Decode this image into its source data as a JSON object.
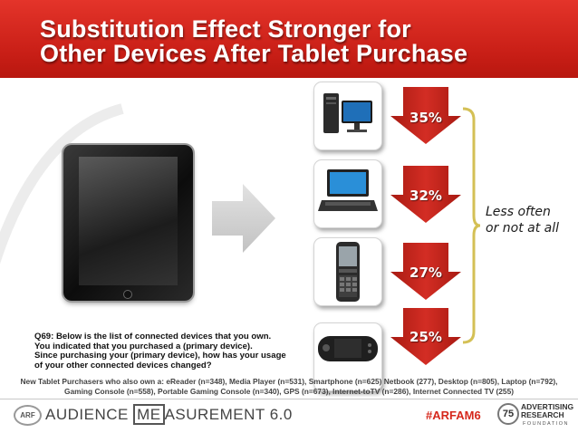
{
  "header": {
    "title_line1": "Substitution Effect Stronger for",
    "title_line2": "Other Devices After Tablet Purchase"
  },
  "devices": [
    {
      "name": "Desktop",
      "icon": "desktop-computer-icon",
      "percent": "35%"
    },
    {
      "name": "Laptop",
      "icon": "laptop-icon",
      "percent": "32%"
    },
    {
      "name": "Smartphone",
      "icon": "phone-icon",
      "percent": "27%"
    },
    {
      "name": "Portable Gaming Console",
      "icon": "portable-game-console-icon",
      "percent": "25%"
    }
  ],
  "bracket_label": {
    "line1": "Less often",
    "line2": "or not at all"
  },
  "question": {
    "line1": "Q69: Below is the list of connected devices that you own.",
    "line2": "You indicated that you purchased a (primary device).",
    "line3": "Since purchasing your (primary device), how has your usage",
    "line4": "of your other connected devices changed?"
  },
  "note": {
    "line1": "New Tablet Purchasers who also own a: eReader (n=348), Media Player (n=531), Smartphone (n=625) Netbook (277), Desktop (n=805), Laptop (n=792),",
    "line2": "Gaming Console (n=558), Portable Gaming Console (n=340), GPS (n=673), Internet-toTV (n=286), Internet Connected TV (255)"
  },
  "footer": {
    "arf_logo": "ARF",
    "brand_pre": "AUDIENCE ",
    "brand_box": "ME",
    "brand_post": "ASUREMENT 6.0",
    "hashtag": "#ARFAM6",
    "badge": "75",
    "org_line1": "ADVERTISING",
    "org_line2": "RESEARCH",
    "org_line3": "FOUNDATION"
  },
  "colors": {
    "brand_red": "#c81e16",
    "arrow_red": "#c4241c",
    "bracket_gold": "#d4c055"
  }
}
